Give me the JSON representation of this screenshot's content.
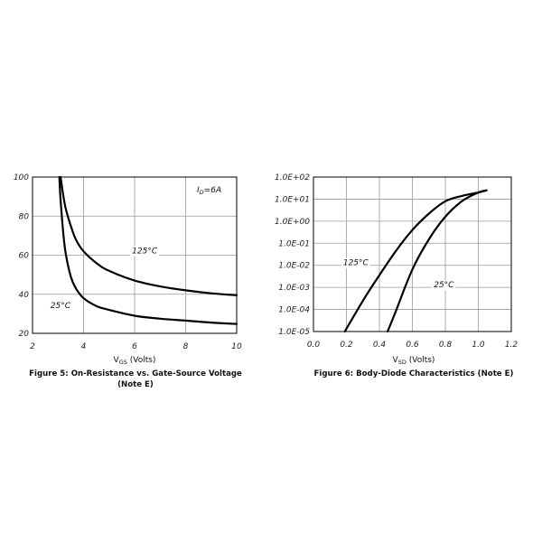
{
  "chart_data": [
    {
      "type": "line",
      "title": "Figure 5: On-Resistance vs. Gate-Source Voltage",
      "subtitle": "(Note E)",
      "xlabel": {
        "main": "V",
        "sub": "GS",
        "suffix": " (Volts)"
      },
      "ylabel": "",
      "xlim": [
        2,
        10
      ],
      "ylim": [
        20,
        100
      ],
      "xticks": [
        "2",
        "4",
        "6",
        "8",
        "10"
      ],
      "yticks": [
        "20",
        "40",
        "60",
        "80",
        "100"
      ],
      "grid": true,
      "annotation": {
        "main": "I",
        "sub": "D",
        "suffix": "=6A"
      },
      "series": [
        {
          "name": "125°C",
          "label_at": [
            5.9,
            61
          ],
          "x": [
            3.1,
            3.2,
            3.3,
            3.5,
            3.7,
            4.0,
            4.5,
            5.0,
            6.0,
            7.0,
            8.0,
            9.0,
            10.0
          ],
          "y": [
            100,
            91,
            84,
            75,
            68,
            62,
            56,
            52,
            47,
            44,
            42,
            40.5,
            39.5
          ]
        },
        {
          "name": "25°C",
          "label_at": [
            2.7,
            33
          ],
          "x": [
            3.05,
            3.1,
            3.2,
            3.3,
            3.5,
            3.7,
            4.0,
            4.5,
            5.0,
            6.0,
            7.0,
            8.0,
            9.0,
            10.0
          ],
          "y": [
            100,
            88,
            72,
            61,
            49,
            43,
            38,
            34,
            32,
            29,
            27.5,
            26.5,
            25.5,
            24.8
          ]
        }
      ]
    },
    {
      "type": "line",
      "title": "Figure 6: Body-Diode Characteristics (Note E)",
      "xlabel": {
        "main": "V",
        "sub": "SD",
        "suffix": " (Volts)"
      },
      "ylabel": "",
      "xlim": [
        0.0,
        1.2
      ],
      "ylim": [
        1e-05,
        100
      ],
      "yscale": "log",
      "xticks": [
        "0.0",
        "0.2",
        "0.4",
        "0.6",
        "0.8",
        "1.0",
        "1.2"
      ],
      "yticks": [
        "1.0E-05",
        "1.0E-04",
        "1.0E-03",
        "1.0E-02",
        "1.0E-01",
        "1.0E+00",
        "1.0E+01",
        "1.0E+02"
      ],
      "grid": true,
      "series": [
        {
          "name": "125°C",
          "label_at": [
            0.18,
            0.01
          ],
          "x": [
            0.19,
            0.3,
            0.4,
            0.5,
            0.6,
            0.7,
            0.8,
            0.9,
            1.0,
            1.05
          ],
          "y": [
            1e-05,
            0.00025,
            0.0036,
            0.045,
            0.4,
            2.2,
            8.0,
            14,
            20,
            25
          ]
        },
        {
          "name": "25°C",
          "label_at": [
            0.73,
            0.001
          ],
          "x": [
            0.45,
            0.5,
            0.6,
            0.7,
            0.8,
            0.9,
            1.0,
            1.05
          ],
          "y": [
            1e-05,
            8.5e-05,
            0.0065,
            0.15,
            1.6,
            8.0,
            20,
            25
          ]
        }
      ]
    }
  ]
}
